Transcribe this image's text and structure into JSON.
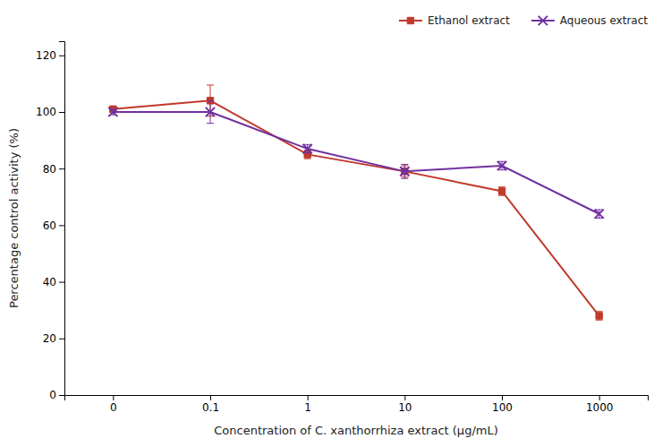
{
  "chart_data": {
    "type": "line",
    "categories": [
      "0",
      "0.1",
      "1",
      "10",
      "100",
      "1000"
    ],
    "series": [
      {
        "name": "Ethanol extract",
        "color": "#c0392b",
        "marker": "square",
        "values": [
          101,
          104,
          85,
          79,
          72,
          28
        ],
        "errors": [
          1.0,
          5.5,
          1.5,
          2.0,
          1.5,
          1.5
        ]
      },
      {
        "name": "Aqueous extract",
        "color": "#7030a0",
        "marker": "x",
        "values": [
          100,
          100,
          87,
          79,
          81,
          64
        ],
        "errors": [
          1.0,
          4.0,
          1.5,
          2.5,
          1.5,
          1.5
        ]
      }
    ],
    "xlabel": "Concentration of C. xanthorrhiza extract (µg/mL)",
    "ylabel": "Percentage control activity (%)",
    "ylim": [
      0,
      125
    ],
    "yticks": [
      0,
      20,
      40,
      60,
      80,
      100,
      120
    ],
    "grid": false,
    "legend": "upper right"
  }
}
